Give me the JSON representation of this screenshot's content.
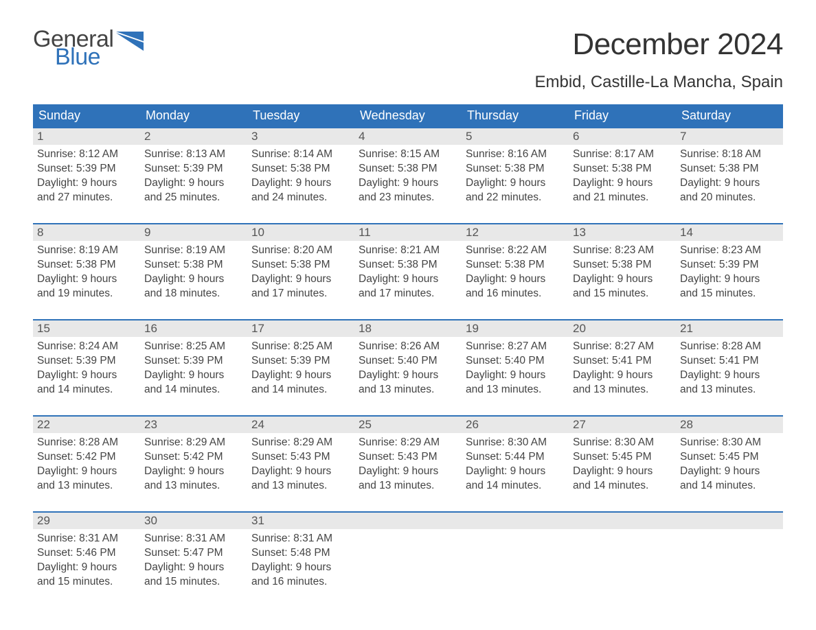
{
  "logo": {
    "text1": "General",
    "text2": "Blue",
    "color1": "#444444",
    "color2": "#2f72b9"
  },
  "title": "December 2024",
  "location": "Embid, Castille-La Mancha, Spain",
  "headers": [
    "Sunday",
    "Monday",
    "Tuesday",
    "Wednesday",
    "Thursday",
    "Friday",
    "Saturday"
  ],
  "header_bg": "#2f72b9",
  "header_fg": "#ffffff",
  "daynum_bg": "#e8e8e8",
  "row_border": "#2f72b9",
  "body_bg": "#ffffff",
  "text_color": "#444444",
  "fonts": {
    "title_size": 44,
    "location_size": 24,
    "header_size": 18,
    "daynum_size": 17,
    "body_size": 15.5
  },
  "weeks": [
    [
      {
        "n": "1",
        "sr": "8:12 AM",
        "ss": "5:39 PM",
        "dl1": "Daylight: 9 hours",
        "dl2": "and 27 minutes."
      },
      {
        "n": "2",
        "sr": "8:13 AM",
        "ss": "5:39 PM",
        "dl1": "Daylight: 9 hours",
        "dl2": "and 25 minutes."
      },
      {
        "n": "3",
        "sr": "8:14 AM",
        "ss": "5:38 PM",
        "dl1": "Daylight: 9 hours",
        "dl2": "and 24 minutes."
      },
      {
        "n": "4",
        "sr": "8:15 AM",
        "ss": "5:38 PM",
        "dl1": "Daylight: 9 hours",
        "dl2": "and 23 minutes."
      },
      {
        "n": "5",
        "sr": "8:16 AM",
        "ss": "5:38 PM",
        "dl1": "Daylight: 9 hours",
        "dl2": "and 22 minutes."
      },
      {
        "n": "6",
        "sr": "8:17 AM",
        "ss": "5:38 PM",
        "dl1": "Daylight: 9 hours",
        "dl2": "and 21 minutes."
      },
      {
        "n": "7",
        "sr": "8:18 AM",
        "ss": "5:38 PM",
        "dl1": "Daylight: 9 hours",
        "dl2": "and 20 minutes."
      }
    ],
    [
      {
        "n": "8",
        "sr": "8:19 AM",
        "ss": "5:38 PM",
        "dl1": "Daylight: 9 hours",
        "dl2": "and 19 minutes."
      },
      {
        "n": "9",
        "sr": "8:19 AM",
        "ss": "5:38 PM",
        "dl1": "Daylight: 9 hours",
        "dl2": "and 18 minutes."
      },
      {
        "n": "10",
        "sr": "8:20 AM",
        "ss": "5:38 PM",
        "dl1": "Daylight: 9 hours",
        "dl2": "and 17 minutes."
      },
      {
        "n": "11",
        "sr": "8:21 AM",
        "ss": "5:38 PM",
        "dl1": "Daylight: 9 hours",
        "dl2": "and 17 minutes."
      },
      {
        "n": "12",
        "sr": "8:22 AM",
        "ss": "5:38 PM",
        "dl1": "Daylight: 9 hours",
        "dl2": "and 16 minutes."
      },
      {
        "n": "13",
        "sr": "8:23 AM",
        "ss": "5:38 PM",
        "dl1": "Daylight: 9 hours",
        "dl2": "and 15 minutes."
      },
      {
        "n": "14",
        "sr": "8:23 AM",
        "ss": "5:39 PM",
        "dl1": "Daylight: 9 hours",
        "dl2": "and 15 minutes."
      }
    ],
    [
      {
        "n": "15",
        "sr": "8:24 AM",
        "ss": "5:39 PM",
        "dl1": "Daylight: 9 hours",
        "dl2": "and 14 minutes."
      },
      {
        "n": "16",
        "sr": "8:25 AM",
        "ss": "5:39 PM",
        "dl1": "Daylight: 9 hours",
        "dl2": "and 14 minutes."
      },
      {
        "n": "17",
        "sr": "8:25 AM",
        "ss": "5:39 PM",
        "dl1": "Daylight: 9 hours",
        "dl2": "and 14 minutes."
      },
      {
        "n": "18",
        "sr": "8:26 AM",
        "ss": "5:40 PM",
        "dl1": "Daylight: 9 hours",
        "dl2": "and 13 minutes."
      },
      {
        "n": "19",
        "sr": "8:27 AM",
        "ss": "5:40 PM",
        "dl1": "Daylight: 9 hours",
        "dl2": "and 13 minutes."
      },
      {
        "n": "20",
        "sr": "8:27 AM",
        "ss": "5:41 PM",
        "dl1": "Daylight: 9 hours",
        "dl2": "and 13 minutes."
      },
      {
        "n": "21",
        "sr": "8:28 AM",
        "ss": "5:41 PM",
        "dl1": "Daylight: 9 hours",
        "dl2": "and 13 minutes."
      }
    ],
    [
      {
        "n": "22",
        "sr": "8:28 AM",
        "ss": "5:42 PM",
        "dl1": "Daylight: 9 hours",
        "dl2": "and 13 minutes."
      },
      {
        "n": "23",
        "sr": "8:29 AM",
        "ss": "5:42 PM",
        "dl1": "Daylight: 9 hours",
        "dl2": "and 13 minutes."
      },
      {
        "n": "24",
        "sr": "8:29 AM",
        "ss": "5:43 PM",
        "dl1": "Daylight: 9 hours",
        "dl2": "and 13 minutes."
      },
      {
        "n": "25",
        "sr": "8:29 AM",
        "ss": "5:43 PM",
        "dl1": "Daylight: 9 hours",
        "dl2": "and 13 minutes."
      },
      {
        "n": "26",
        "sr": "8:30 AM",
        "ss": "5:44 PM",
        "dl1": "Daylight: 9 hours",
        "dl2": "and 14 minutes."
      },
      {
        "n": "27",
        "sr": "8:30 AM",
        "ss": "5:45 PM",
        "dl1": "Daylight: 9 hours",
        "dl2": "and 14 minutes."
      },
      {
        "n": "28",
        "sr": "8:30 AM",
        "ss": "5:45 PM",
        "dl1": "Daylight: 9 hours",
        "dl2": "and 14 minutes."
      }
    ],
    [
      {
        "n": "29",
        "sr": "8:31 AM",
        "ss": "5:46 PM",
        "dl1": "Daylight: 9 hours",
        "dl2": "and 15 minutes."
      },
      {
        "n": "30",
        "sr": "8:31 AM",
        "ss": "5:47 PM",
        "dl1": "Daylight: 9 hours",
        "dl2": "and 15 minutes."
      },
      {
        "n": "31",
        "sr": "8:31 AM",
        "ss": "5:48 PM",
        "dl1": "Daylight: 9 hours",
        "dl2": "and 16 minutes."
      },
      null,
      null,
      null,
      null
    ]
  ],
  "labels": {
    "sunrise": "Sunrise: ",
    "sunset": "Sunset: "
  }
}
